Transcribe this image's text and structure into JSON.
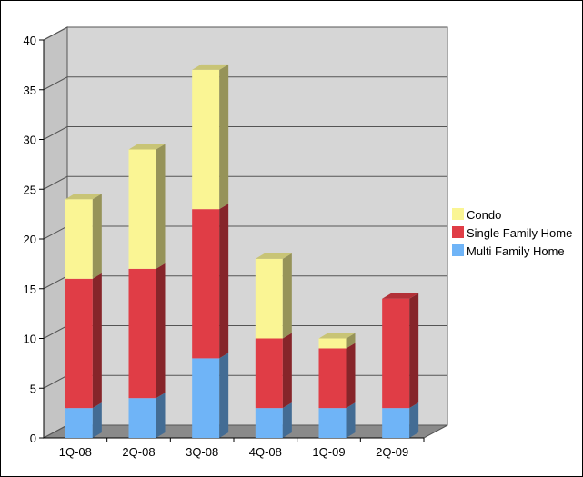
{
  "chart_data": {
    "type": "bar",
    "stacked": true,
    "three_d": true,
    "categories": [
      "1Q-08",
      "2Q-08",
      "3Q-08",
      "4Q-08",
      "1Q-09",
      "2Q-09"
    ],
    "series": [
      {
        "name": "Multi Family Home",
        "values": [
          3,
          4,
          8,
          3,
          3,
          3
        ],
        "color": "#6fb4f7"
      },
      {
        "name": "Single Family Home",
        "values": [
          13,
          13,
          15,
          7,
          6,
          11
        ],
        "color": "#e03d46"
      },
      {
        "name": "Condo",
        "values": [
          8,
          12,
          14,
          8,
          1,
          0
        ],
        "color": "#faf594"
      }
    ],
    "legend_order": [
      "Condo",
      "Single Family Home",
      "Multi Family Home"
    ],
    "legend_position": "right",
    "ylim": [
      0,
      40
    ],
    "yticks": [
      "0",
      "5",
      "10",
      "15",
      "20",
      "25",
      "30",
      "35",
      "40"
    ],
    "grid": true,
    "title": "",
    "xlabel": "",
    "ylabel": ""
  }
}
